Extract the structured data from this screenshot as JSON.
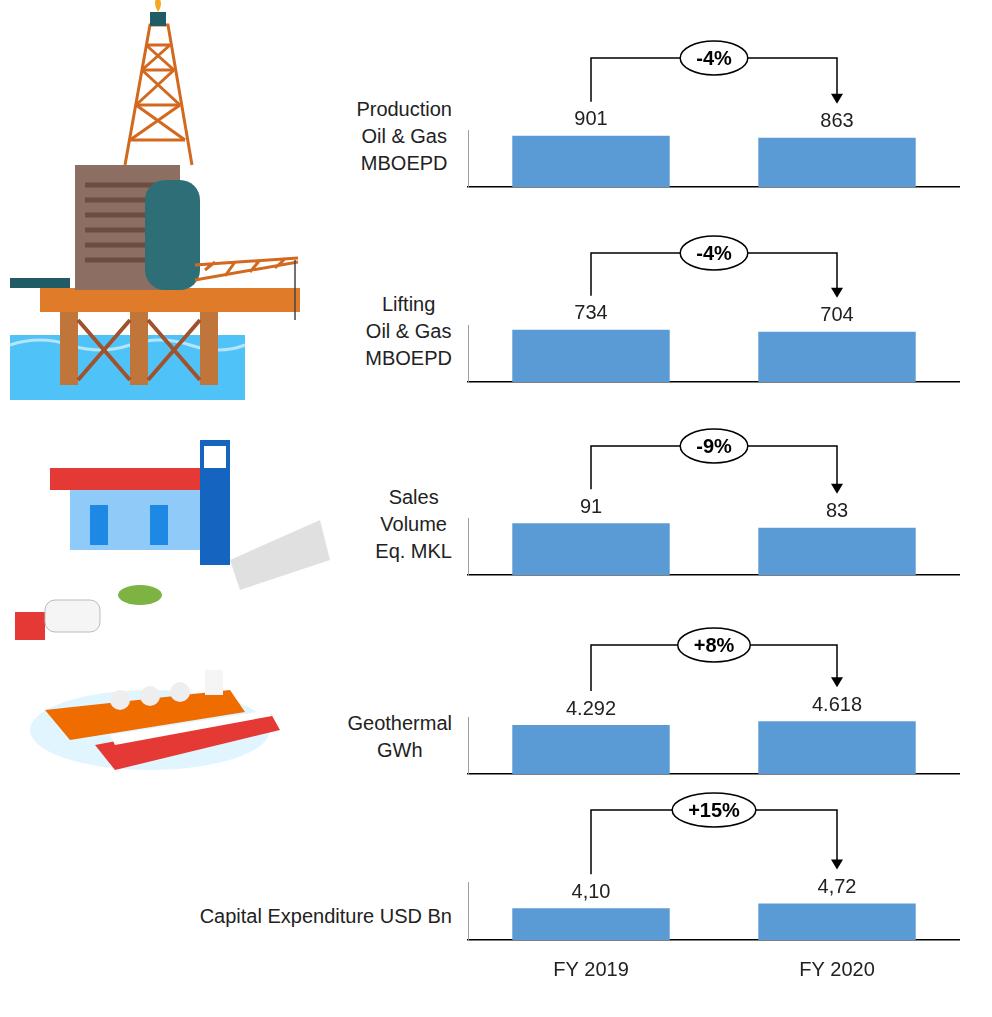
{
  "chart_data": [
    {
      "type": "bar",
      "title": [
        "Production",
        "Oil & Gas",
        "MBOEPD"
      ],
      "annotation": "-4%",
      "categories": [
        "FY 2019",
        "FY 2020"
      ],
      "values": [
        901,
        863
      ],
      "color": "#5b9bd5",
      "ylim": [
        0,
        1000
      ],
      "data_labels": true,
      "tick_labels": false
    },
    {
      "type": "bar",
      "title": [
        "Lifting",
        "Oil & Gas",
        "MBOEPD"
      ],
      "annotation": "-4%",
      "categories": [
        "FY 2019",
        "FY 2020"
      ],
      "values": [
        734,
        704
      ],
      "color": "#5b9bd5",
      "ylim": [
        0,
        800
      ],
      "data_labels": true,
      "tick_labels": false
    },
    {
      "type": "bar",
      "title": [
        "Sales",
        "Volume",
        "Eq. MKL"
      ],
      "annotation": "-9%",
      "categories": [
        "FY 2019",
        "FY 2020"
      ],
      "values": [
        91,
        83
      ],
      "color": "#5b9bd5",
      "ylim": [
        0,
        100
      ],
      "data_labels": true,
      "tick_labels": false
    },
    {
      "type": "bar",
      "title": [
        "Geothermal",
        "GWh"
      ],
      "annotation": "+8%",
      "categories": [
        "FY 2019",
        "FY 2020"
      ],
      "values": [
        4292,
        4618
      ],
      "value_labels": [
        "4.292",
        "4.618"
      ],
      "color": "#5b9bd5",
      "ylim": [
        0,
        5000
      ],
      "data_labels": true,
      "tick_labels": false
    },
    {
      "type": "bar",
      "title": [
        "Capital Expenditure USD Bn"
      ],
      "annotation": "+15%",
      "categories": [
        "FY 2019",
        "FY 2020"
      ],
      "values": [
        4.1,
        4.72
      ],
      "value_labels": [
        "4,10",
        "4,72"
      ],
      "color": "#5b9bd5",
      "ylim": [
        0,
        7.5
      ],
      "data_labels": true,
      "tick_labels": "x"
    }
  ]
}
